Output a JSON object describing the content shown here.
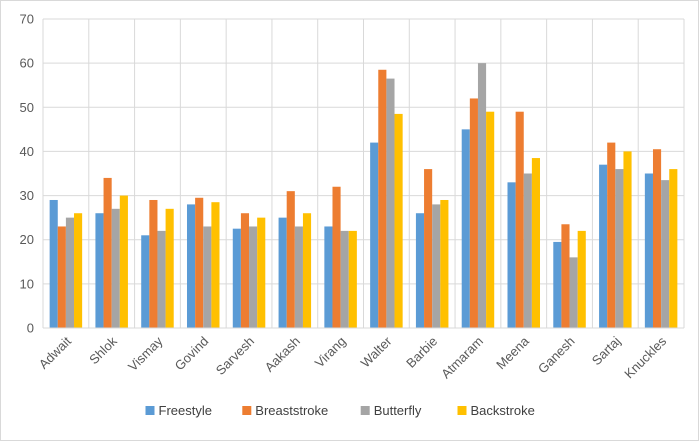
{
  "chart_data": {
    "type": "bar",
    "categories": [
      "Adwait",
      "Shlok",
      "Vismay",
      "Govind",
      "Sarvesh",
      "Aakash",
      "Virang",
      "Walter",
      "Barbie",
      "Atmaram",
      "Meena",
      "Ganesh",
      "Sartaj",
      "Knuckles"
    ],
    "series": [
      {
        "name": "Freestyle",
        "color": "#5b9bd5",
        "values": [
          29,
          26,
          21,
          28,
          22.5,
          25,
          23,
          42,
          26,
          45,
          33,
          19.5,
          37,
          35
        ]
      },
      {
        "name": "Breaststroke",
        "color": "#ed7d31",
        "values": [
          23,
          34,
          29,
          29.5,
          26,
          31,
          32,
          58.5,
          36,
          52,
          49,
          23.5,
          42,
          40.5
        ]
      },
      {
        "name": "Butterfly",
        "color": "#a5a5a5",
        "values": [
          25,
          27,
          22,
          23,
          23,
          23,
          22,
          56.5,
          28,
          60,
          35,
          16,
          36,
          33.5
        ]
      },
      {
        "name": "Backstroke",
        "color": "#ffc000",
        "values": [
          26,
          30,
          27,
          28.5,
          25,
          26,
          22,
          48.5,
          29,
          49,
          38.5,
          22,
          40,
          36
        ]
      }
    ],
    "title": "",
    "xlabel": "",
    "ylabel": "",
    "ylim": [
      0,
      70
    ],
    "yticks": [
      0,
      10,
      20,
      30,
      40,
      50,
      60,
      70
    ],
    "grid": true,
    "legend_position": "bottom"
  }
}
